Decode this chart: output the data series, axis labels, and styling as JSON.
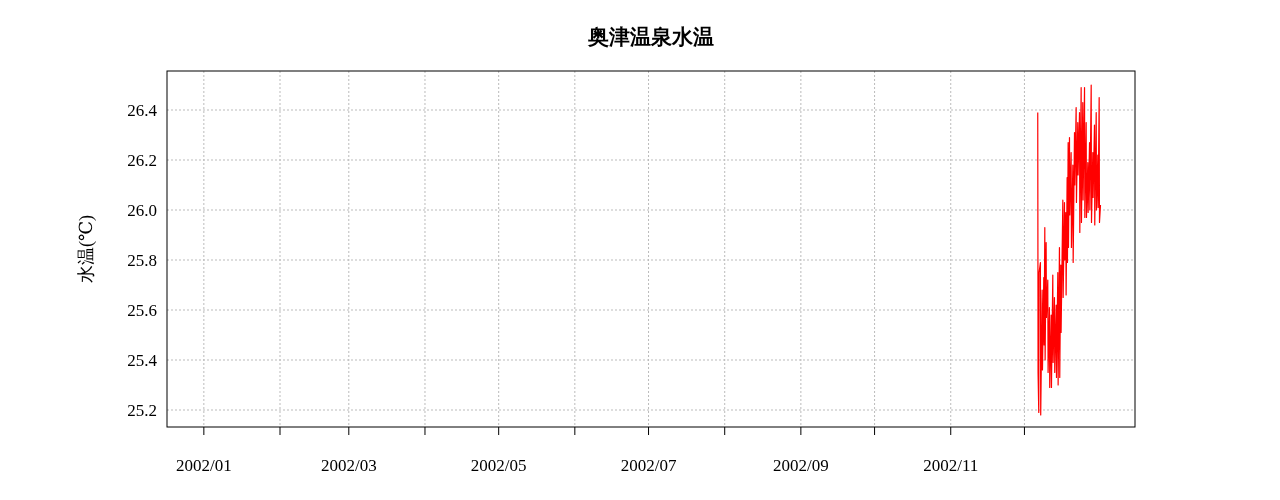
{
  "chart_data": {
    "type": "line",
    "title": "奥津温泉水温",
    "ylabel": "水温(℃)",
    "xlim": [
      "2001-12-17",
      "2003-01-15"
    ],
    "ylim": [
      25.132,
      26.556
    ],
    "xticks": [
      {
        "value": "2002-01",
        "label": "2002/01"
      },
      {
        "value": "2002-02",
        "label": null
      },
      {
        "value": "2002-03",
        "label": "2002/03"
      },
      {
        "value": "2002-04",
        "label": null
      },
      {
        "value": "2002-05",
        "label": "2002/05"
      },
      {
        "value": "2002-06",
        "label": null
      },
      {
        "value": "2002-07",
        "label": "2002/07"
      },
      {
        "value": "2002-08",
        "label": null
      },
      {
        "value": "2002-09",
        "label": "2002/09"
      },
      {
        "value": "2002-10",
        "label": null
      },
      {
        "value": "2002-11",
        "label": "2002/11"
      },
      {
        "value": "2002-12",
        "label": null
      }
    ],
    "yticks": [
      {
        "value": 25.2,
        "label": "25.2"
      },
      {
        "value": 25.4,
        "label": "25.4"
      },
      {
        "value": 25.6,
        "label": "25.6"
      },
      {
        "value": 25.8,
        "label": "25.8"
      },
      {
        "value": 26,
        "label": "26.0"
      },
      {
        "value": 26.2,
        "label": "26.2"
      },
      {
        "value": 26.4,
        "label": "26.4"
      }
    ],
    "grid": true,
    "x": [
      "2002-12-06T10:00",
      "2002-12-06T13:00",
      "2002-12-06T20:00",
      "2002-12-06T23:00",
      "2002-12-07T12:00",
      "2002-12-07T15:00",
      "2002-12-08T05:00",
      "2002-12-08T08:00",
      "2002-12-08T21:00",
      "2002-12-09T00:00",
      "2002-12-09T07:00",
      "2002-12-09T10:00",
      "2002-12-09T20:00",
      "2002-12-09T23:00",
      "2002-12-10T12:00",
      "2002-12-10T15:00",
      "2002-12-11T04:00",
      "2002-12-11T07:00",
      "2002-12-11T21:00",
      "2002-12-12T00:00",
      "2002-12-12T13:00",
      "2002-12-12T16:00",
      "2002-12-13T05:00",
      "2002-12-13T08:00",
      "2002-12-13T22:00",
      "2002-12-14T01:00",
      "2002-12-14T14:00",
      "2002-12-14T17:00",
      "2002-12-15T06:00",
      "2002-12-15T09:00",
      "2002-12-15T19:00",
      "2002-12-15T22:00",
      "2002-12-16T15:00",
      "2002-12-16T18:00",
      "2002-12-17T07:00",
      "2002-12-17T10:00",
      "2002-12-17T20:00",
      "2002-12-17T23:00",
      "2002-12-18T09:00",
      "2002-12-18T12:00",
      "2002-12-18T19:00",
      "2002-12-18T22:00",
      "2002-12-19T08:00",
      "2002-12-19T11:00",
      "2002-12-20T00:00",
      "2002-12-20T03:00",
      "2002-12-20T17:00",
      "2002-12-20T20:00",
      "2002-12-21T09:00",
      "2002-12-21T12:00",
      "2002-12-22T01:00",
      "2002-12-22T04:00",
      "2002-12-22T17:00",
      "2002-12-22T20:00",
      "2002-12-23T10:00",
      "2002-12-23T13:00",
      "2002-12-24T02:00",
      "2002-12-24T05:00",
      "2002-12-24T18:00",
      "2002-12-24T21:00",
      "2002-12-25T11:00",
      "2002-12-25T14:00",
      "2002-12-26T03:00",
      "2002-12-26T06:00",
      "2002-12-26T19:00",
      "2002-12-26T22:00",
      "2002-12-27T12:00",
      "2002-12-27T15:00",
      "2002-12-28T04:00",
      "2002-12-28T07:00",
      "2002-12-28T20:00",
      "2002-12-28T23:00",
      "2002-12-29T12:00",
      "2002-12-29T15:00",
      "2002-12-30T05:00",
      "2002-12-30T08:00",
      "2002-12-30T21:00",
      "2002-12-31T00:00",
      "2002-12-31T10:00",
      "2002-12-31T13:00",
      "2002-12-31T23:00"
    ],
    "series": [
      {
        "color": "#ff0000",
        "values": [
          26.39,
          25.35,
          25.19,
          25.75,
          25.79,
          25.18,
          25.68,
          25.36,
          25.73,
          25.46,
          25.93,
          25.4,
          25.87,
          25.57,
          25.72,
          25.35,
          25.61,
          25.29,
          25.58,
          25.29,
          25.74,
          25.39,
          25.65,
          25.35,
          25.62,
          25.33,
          25.75,
          25.3,
          25.85,
          25.33,
          25.78,
          25.51,
          26.04,
          25.65,
          26.03,
          25.8,
          25.99,
          25.66,
          26.13,
          25.79,
          26.27,
          25.85,
          26.29,
          25.98,
          26.23,
          25.85,
          26.18,
          25.79,
          26.31,
          26.1,
          26.41,
          26.03,
          26.35,
          26.14,
          26.39,
          25.91,
          26.49,
          25.95,
          26.43,
          26.04,
          26.49,
          25.97,
          26.35,
          25.97,
          26.19,
          25.99,
          26.27,
          26.0,
          26.5,
          25.95,
          26.23,
          26.05,
          26.34,
          25.94,
          26.39,
          26.0,
          26.22,
          26.01,
          26.45,
          25.95,
          26.02
        ]
      }
    ]
  }
}
